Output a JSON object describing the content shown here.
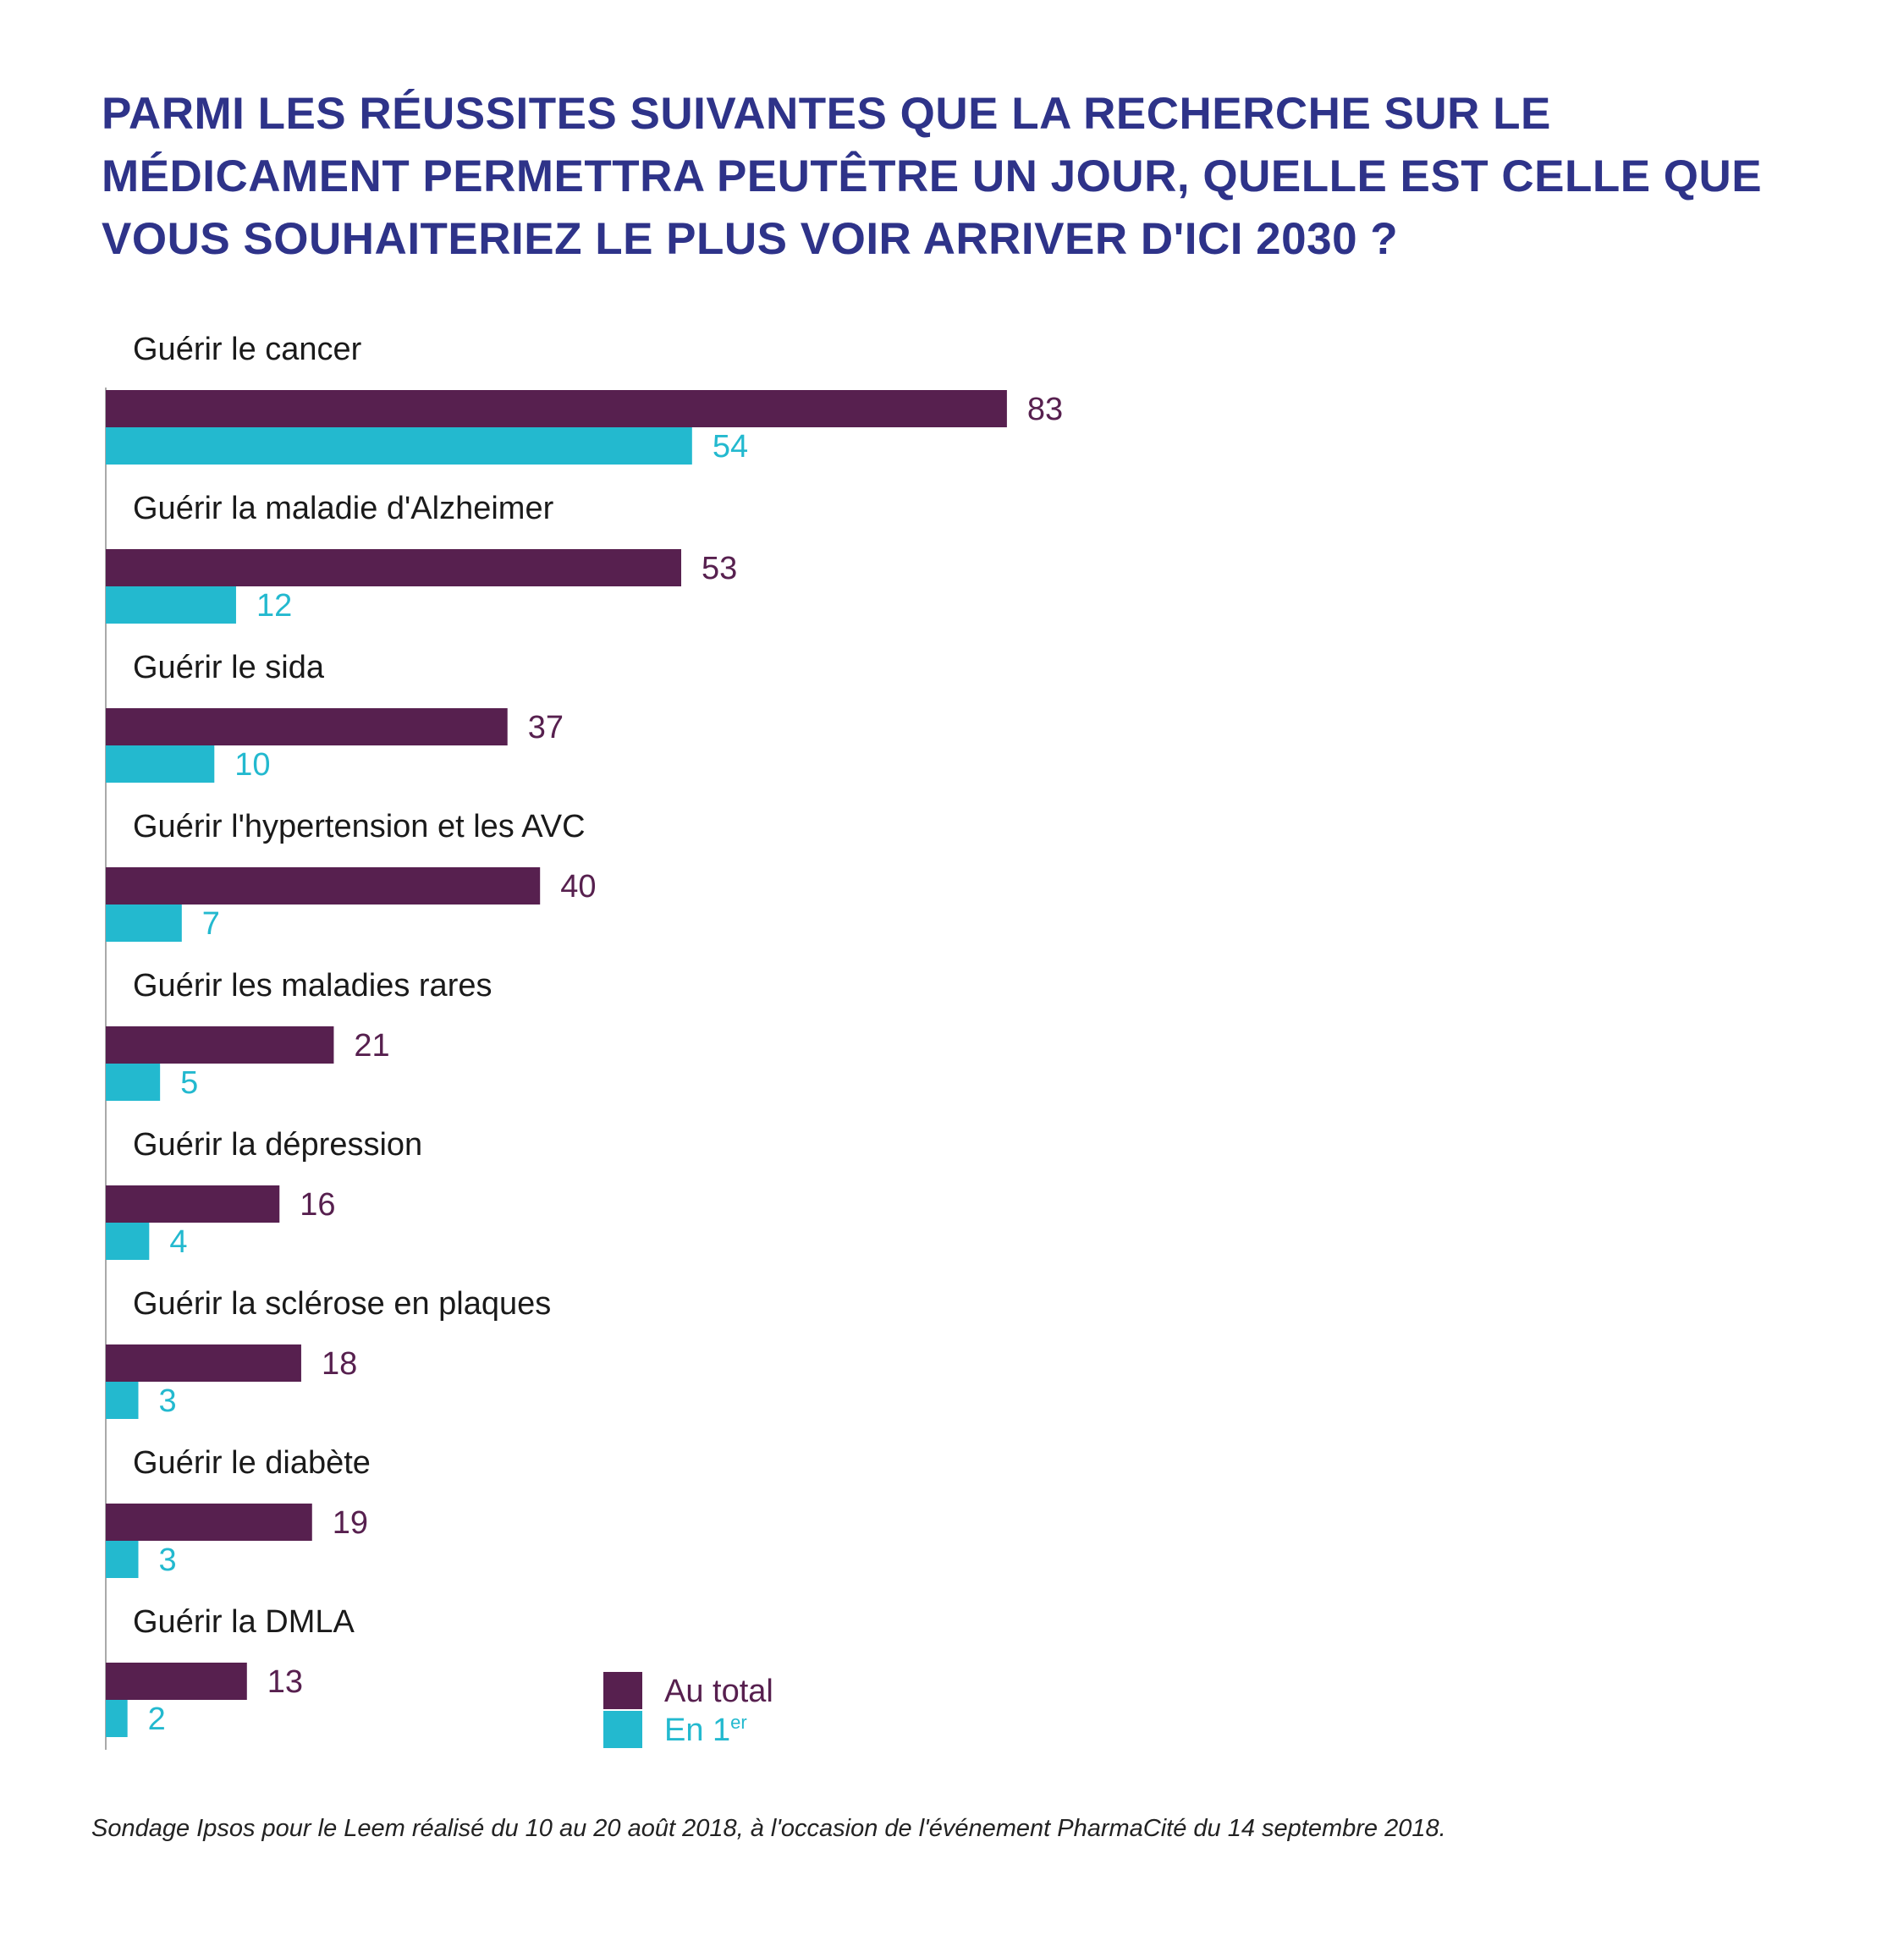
{
  "chart_data": {
    "type": "bar",
    "orientation": "horizontal",
    "title": "PARMI LES RÉUSSITES SUIVANTES QUE LA RECHERCHE SUR LE MÉDICAMENT PERMETTRA PEUTÊTRE UN JOUR, QUELLE EST CELLE QUE VOUS SOUHAITERIEZ LE PLUS VOIR ARRIVER D'ICI 2030 ?",
    "categories": [
      "Guérir le cancer",
      "Guérir la maladie d'Alzheimer",
      "Guérir le sida",
      "Guérir l'hypertension et les AVC",
      "Guérir les maladies rares",
      "Guérir la dépression",
      "Guérir la sclérose en plaques",
      "Guérir le diabète",
      "Guérir la DMLA"
    ],
    "series": [
      {
        "name": "Au total",
        "color": "#57204f",
        "values": [
          83,
          53,
          37,
          40,
          21,
          16,
          18,
          19,
          13
        ]
      },
      {
        "name": "En 1",
        "name_superscript": "er",
        "color": "#23b9cf",
        "values": [
          54,
          12,
          10,
          7,
          5,
          4,
          3,
          3,
          2
        ]
      }
    ],
    "legend": "bottom-center",
    "grid": false
  },
  "source": "Sondage Ipsos pour le Leem réalisé du 10 au 20 août 2018, à l'occasion de l'événement PharmaCité du 14 septembre 2018.",
  "colors": {
    "title": "#2e3389",
    "axis": "#aaaaaa"
  }
}
